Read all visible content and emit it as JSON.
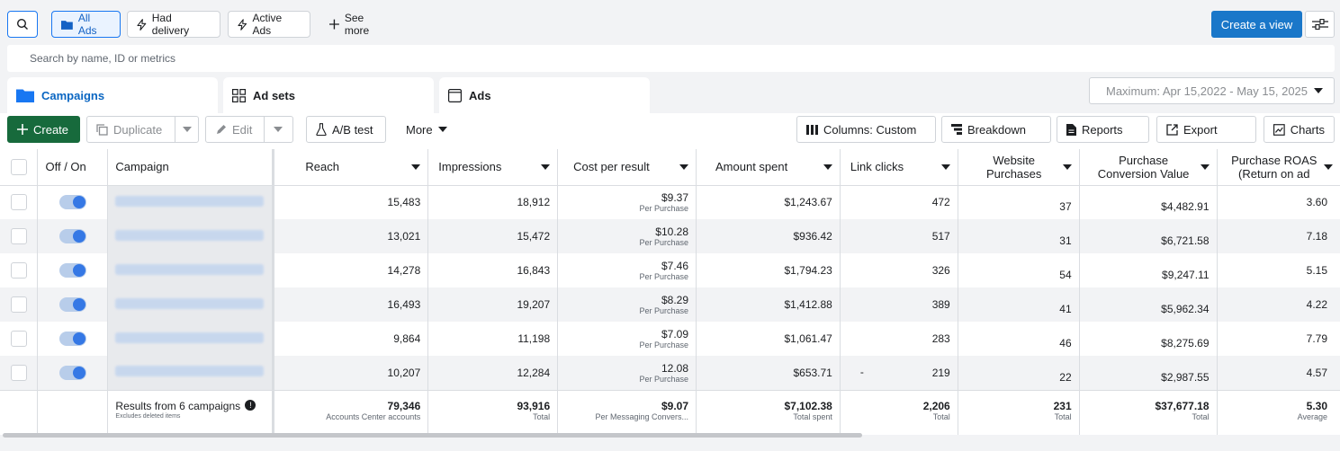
{
  "filters": {
    "search_icon": "search-icon",
    "all_ads": "All Ads",
    "had_delivery": "Had delivery",
    "active_ads": "Active Ads",
    "see_more": "See more"
  },
  "header": {
    "create_view": "Create a view"
  },
  "search": {
    "placeholder": "Search by name, ID or metrics"
  },
  "tabs": [
    {
      "label": "Campaigns",
      "active": true
    },
    {
      "label": "Ad sets",
      "active": false
    },
    {
      "label": "Ads",
      "active": false
    }
  ],
  "date_range": "Maximum: Apr 15,2022 - May 15, 2025",
  "toolbar": {
    "create": "Create",
    "duplicate": "Duplicate",
    "edit": "Edit",
    "ab_test": "A/B test",
    "more": "More",
    "columns": "Columns: Custom",
    "breakdown": "Breakdown",
    "reports": "Reports",
    "export": "Export",
    "charts": "Charts"
  },
  "table": {
    "headers": {
      "off_on": "Off / On",
      "campaign": "Campaign",
      "reach": "Reach",
      "impressions": "Impressions",
      "cost_per_result": "Cost per result",
      "amount_spent": "Amount spent",
      "link_clicks": "Link clicks",
      "website_purchases_1": "Website",
      "website_purchases_2": "Purchases",
      "conv_value_1": "Purchase",
      "conv_value_2": "Conversion Value",
      "roas_1": "Purchase ROAS",
      "roas_2": "(Return on ad"
    },
    "rows": [
      {
        "reach": "15,483",
        "impressions": "18,912",
        "cpr": "$9.37",
        "cpr_sub": "Per Purchase",
        "spent": "$1,243.67",
        "dash": "",
        "clicks": "472",
        "purchases": "37",
        "value": "$4,482.91",
        "roas": "3.60"
      },
      {
        "reach": "13,021",
        "impressions": "15,472",
        "cpr": "$10.28",
        "cpr_sub": "Per Purchase",
        "spent": "$936.42",
        "dash": "",
        "clicks": "517",
        "purchases": "31",
        "value": "$6,721.58",
        "roas": "7.18"
      },
      {
        "reach": "14,278",
        "impressions": "16,843",
        "cpr": "$7.46",
        "cpr_sub": "Per Purchase",
        "spent": "$1,794.23",
        "dash": "",
        "clicks": "326",
        "purchases": "54",
        "value": "$9,247.11",
        "roas": "5.15"
      },
      {
        "reach": "16,493",
        "impressions": "19,207",
        "cpr": "$8.29",
        "cpr_sub": "Per Purchase",
        "spent": "$1,412.88",
        "dash": "",
        "clicks": "389",
        "purchases": "41",
        "value": "$5,962.34",
        "roas": "4.22"
      },
      {
        "reach": "9,864",
        "impressions": "11,198",
        "cpr": "$7.09",
        "cpr_sub": "Per Purchase",
        "spent": "$1,061.47",
        "dash": "",
        "clicks": "283",
        "purchases": "46",
        "value": "$8,275.69",
        "roas": "7.79"
      },
      {
        "reach": "10,207",
        "impressions": "12,284",
        "cpr": "12.08",
        "cpr_sub": "Per Purchase",
        "spent": "$653.71",
        "dash": "-",
        "clicks": "219",
        "purchases": "22",
        "value": "$2,987.55",
        "roas": "4.57"
      }
    ],
    "total": {
      "label": "Results from 6 campaigns",
      "sub": "Excludes deleted items",
      "reach": "79,346",
      "reach_sub": "Accounts Center accounts",
      "impressions": "93,916",
      "impressions_sub": "Total",
      "cpr": "$9.07",
      "cpr_sub": "Per Messaging Convers...",
      "spent": "$7,102.38",
      "spent_sub": "Total spent",
      "clicks": "2,206",
      "clicks_sub": "Total",
      "purchases": "231",
      "purchases_sub": "Total",
      "value": "$37,677.18",
      "value_sub": "Total",
      "roas": "5.30",
      "roas_sub": "Average"
    }
  }
}
